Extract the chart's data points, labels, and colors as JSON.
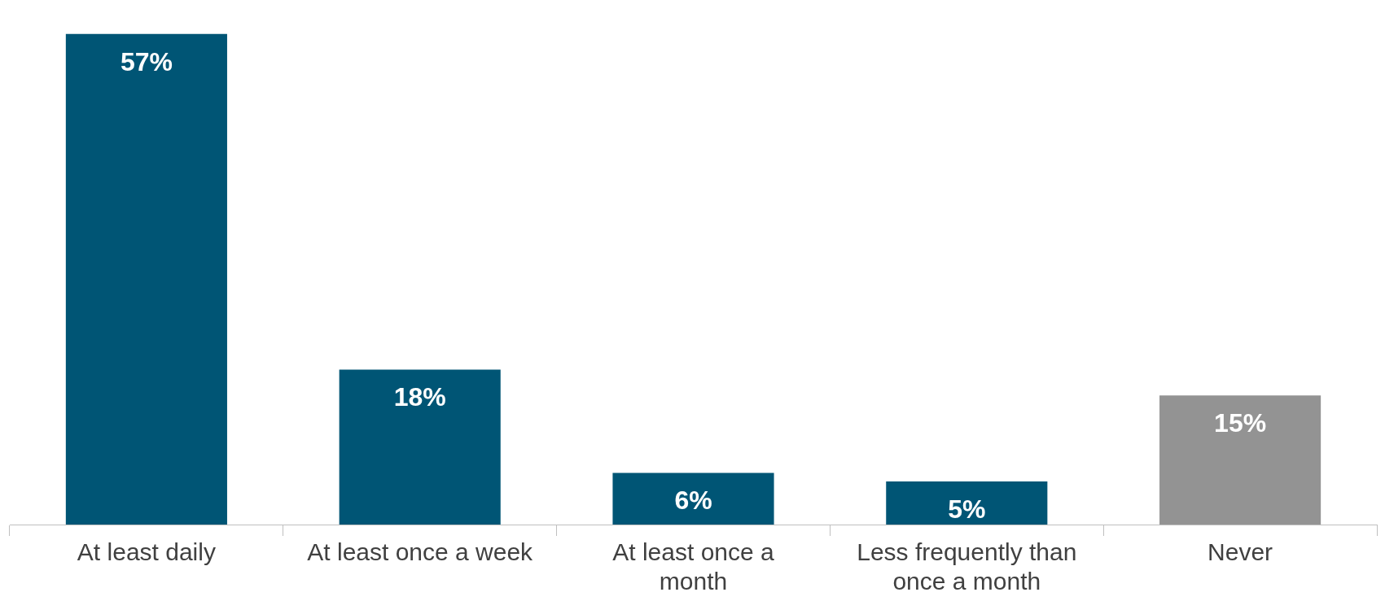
{
  "chart_data": {
    "type": "bar",
    "categories": [
      "At least daily",
      "At least once a week",
      "At least once a month",
      "Less frequently than once a month",
      "Never"
    ],
    "values": [
      57,
      18,
      6,
      5,
      15
    ],
    "colors": [
      "#005575",
      "#005575",
      "#005575",
      "#005575",
      "#939393"
    ],
    "value_labels": [
      "57%",
      "18%",
      "6%",
      "5%",
      "15%"
    ]
  }
}
